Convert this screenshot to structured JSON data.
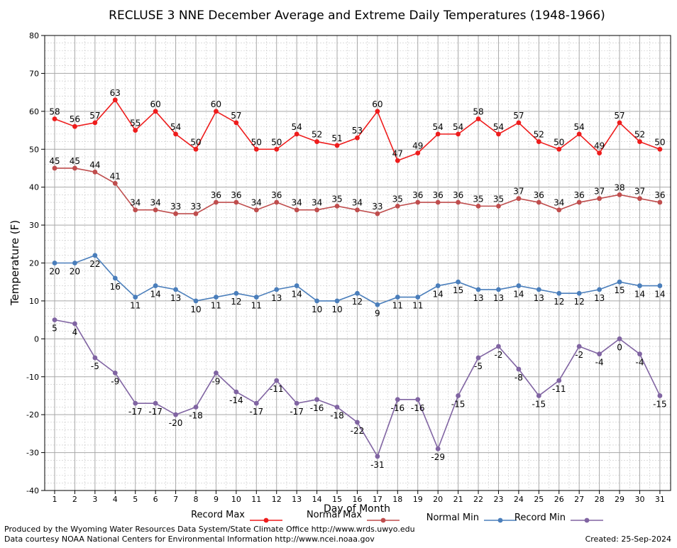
{
  "chart_data": {
    "type": "line",
    "title": "RECLUSE 3 NNE December Average and Extreme Daily Temperatures (1948-1966)",
    "xlabel": "Day of Month",
    "ylabel": "Temperature (F)",
    "ylim": [
      -40,
      80
    ],
    "yticks": [
      -40,
      -30,
      -20,
      -10,
      0,
      10,
      20,
      30,
      40,
      50,
      60,
      70,
      80
    ],
    "x": [
      1,
      2,
      3,
      4,
      5,
      6,
      7,
      8,
      9,
      10,
      11,
      12,
      13,
      14,
      15,
      16,
      17,
      18,
      19,
      20,
      21,
      22,
      23,
      24,
      25,
      26,
      27,
      28,
      29,
      30,
      31
    ],
    "grid": true,
    "legend_position": "bottom",
    "series": [
      {
        "name": "Record Max",
        "color": "#ee1c1c",
        "values": [
          58,
          56,
          57,
          63,
          55,
          60,
          54,
          50,
          60,
          57,
          50,
          50,
          54,
          52,
          51,
          53,
          60,
          47,
          49,
          54,
          54,
          58,
          54,
          57,
          52,
          50,
          54,
          49,
          57,
          52,
          50
        ]
      },
      {
        "name": "Normal Max",
        "color": "#bf4d4d",
        "values": [
          45,
          45,
          44,
          41,
          34,
          34,
          33,
          33,
          36,
          36,
          34,
          36,
          34,
          34,
          35,
          34,
          33,
          35,
          36,
          36,
          36,
          35,
          35,
          37,
          36,
          34,
          36,
          37,
          38,
          37,
          36
        ]
      },
      {
        "name": "Normal Min",
        "color": "#4a7ebb",
        "values": [
          20,
          20,
          22,
          16,
          11,
          14,
          13,
          10,
          11,
          12,
          11,
          13,
          14,
          10,
          10,
          12,
          9,
          11,
          11,
          14,
          15,
          13,
          13,
          14,
          13,
          12,
          12,
          13,
          15,
          14,
          14
        ]
      },
      {
        "name": "Record Min",
        "color": "#8064a2",
        "values": [
          5,
          4,
          -5,
          -9,
          -17,
          -17,
          -20,
          -18,
          -9,
          -14,
          -17,
          -11,
          -17,
          -16,
          -18,
          -22,
          -31,
          -16,
          -16,
          -29,
          -15,
          -5,
          -2,
          -8,
          -15,
          -11,
          -2,
          -4,
          0,
          -4,
          -15
        ]
      }
    ]
  },
  "footer": {
    "left_line1": "Produced by the Wyoming Water Resources Data System/State Climate Office http://www.wrds.uwyo.edu",
    "left_line2": "Data courtesy NOAA National Centers for Environmental Information http://www.ncei.noaa.gov",
    "created": "Created: 25-Sep-2024"
  }
}
